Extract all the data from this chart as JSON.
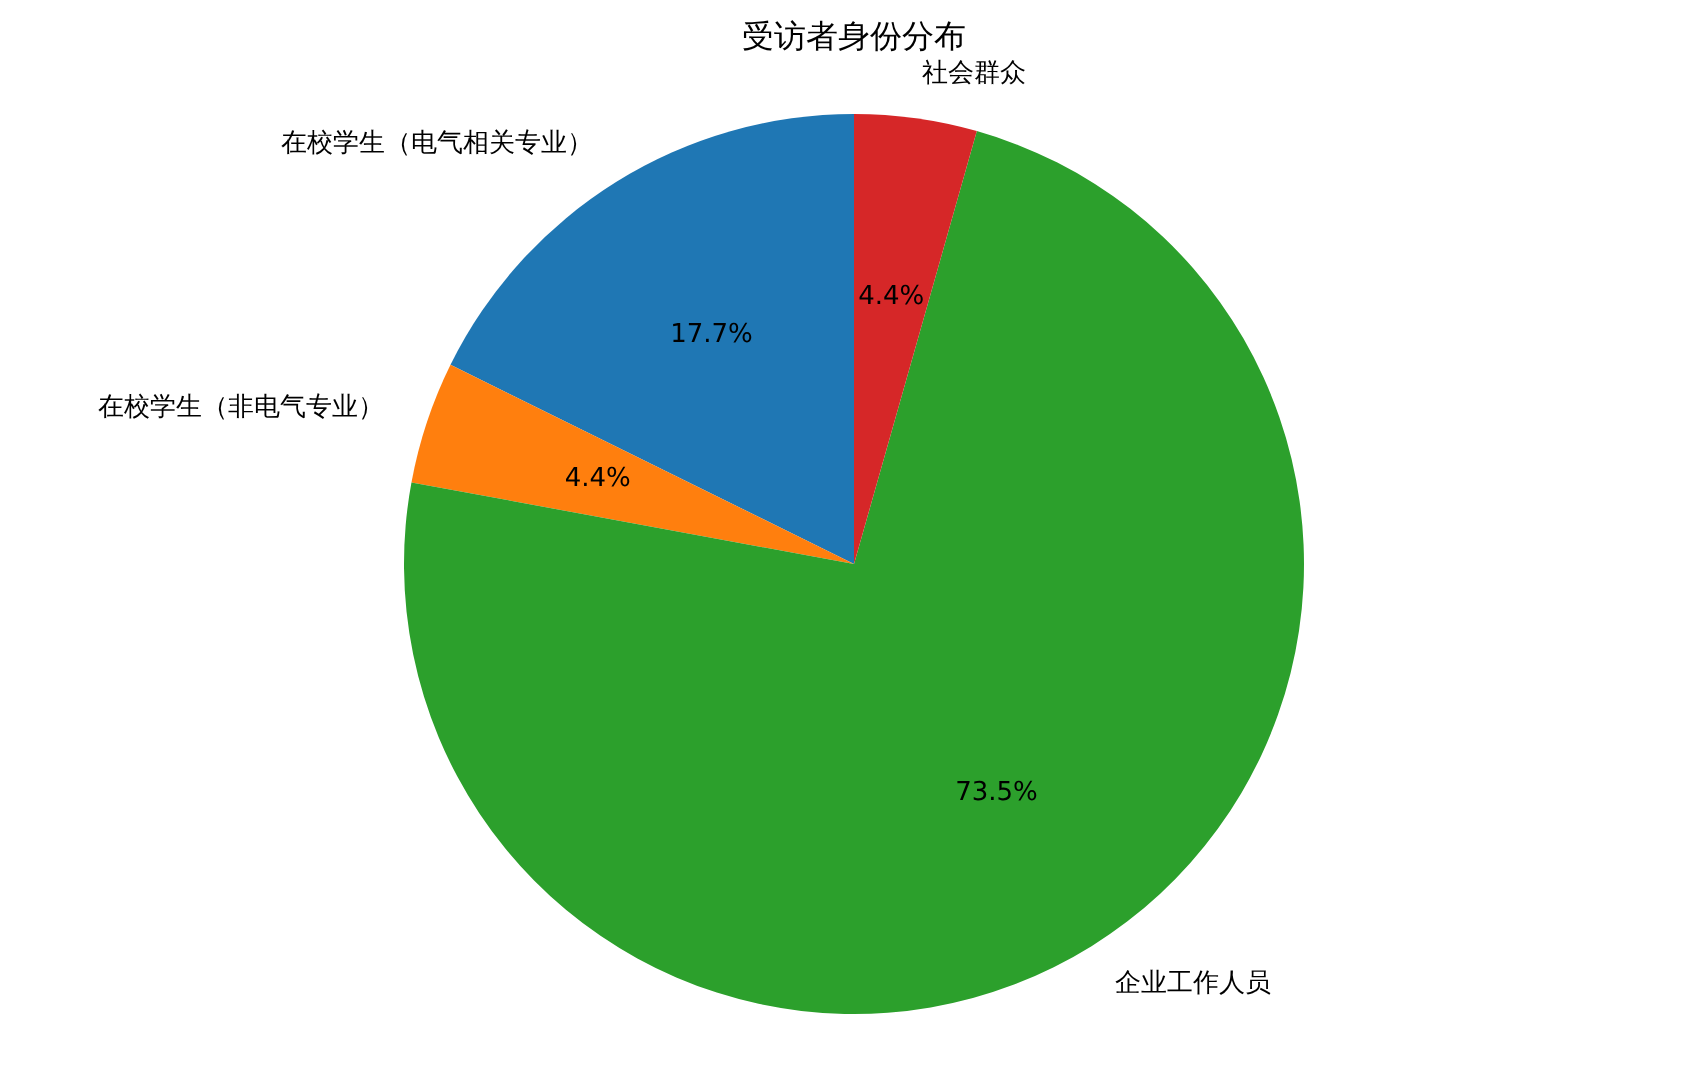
{
  "chart_data": {
    "type": "pie",
    "title": "受访者身份分布",
    "categories": [
      "在校学生（电气相关专业）",
      "在校学生（非电气专业）",
      "企业工作人员",
      "社会群众"
    ],
    "values": [
      17.7,
      4.4,
      73.5,
      4.4
    ],
    "value_labels": [
      "17.7%",
      "4.4%",
      "73.5%",
      "4.4%"
    ],
    "colors": [
      "#1f77b4",
      "#ff7f0e",
      "#2ca02c",
      "#d62728"
    ]
  }
}
